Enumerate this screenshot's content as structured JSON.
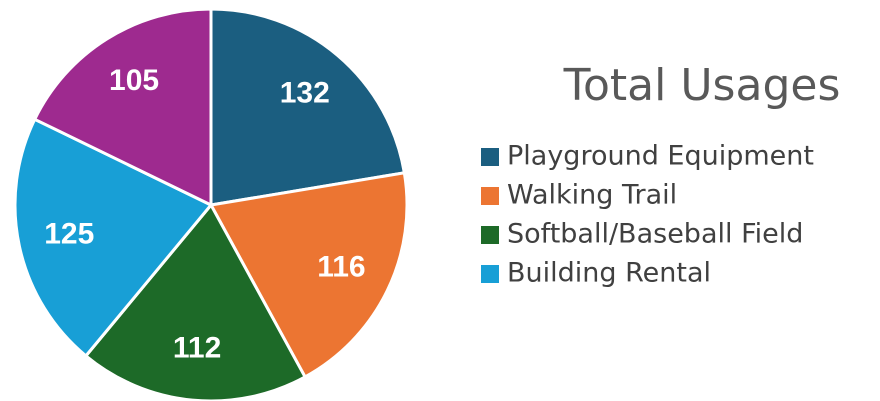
{
  "chart_data": {
    "type": "pie",
    "title": "Total Usages",
    "categories": [
      "Playground Equipment",
      "Walking Trail",
      "Softball/Baseball Field",
      "Building Rental",
      null
    ],
    "values": [
      132,
      116,
      112,
      125,
      105
    ],
    "colors": [
      "#1b5e80",
      "#ec7532",
      "#1d6a28",
      "#189fd6",
      "#9e2a8f"
    ],
    "legend": "right"
  }
}
